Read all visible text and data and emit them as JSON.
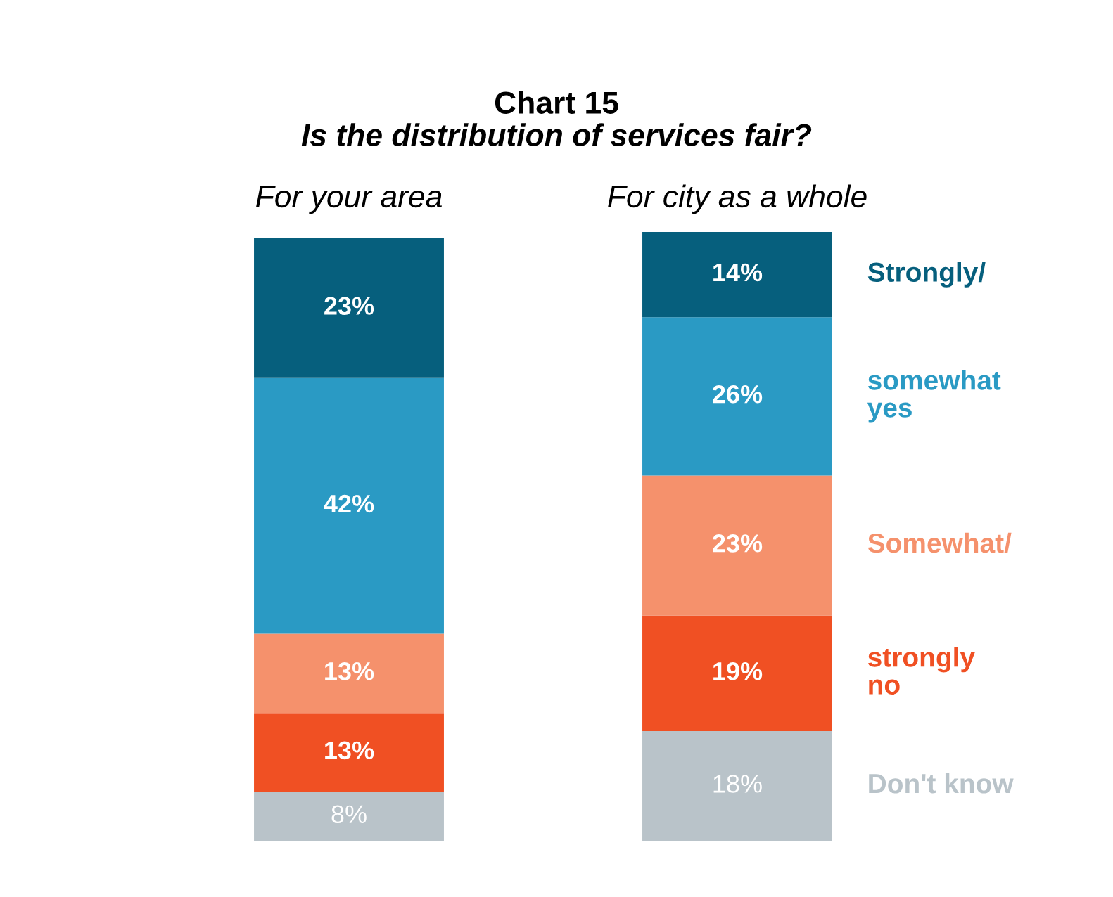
{
  "chart_data": {
    "type": "bar",
    "stacked": true,
    "title": "Chart 15",
    "subtitle": "Is the distribution of services fair?",
    "categories": [
      "For your area",
      "For city as a whole"
    ],
    "series": [
      {
        "name": "Don't know",
        "color": "#b9c3c9",
        "values": [
          8,
          18
        ],
        "value_labels": [
          "8%",
          "18%"
        ]
      },
      {
        "name": "strongly\nno",
        "color": "#f05023",
        "values": [
          13,
          19
        ],
        "value_labels": [
          "13%",
          "19%"
        ]
      },
      {
        "name": "Somewhat/",
        "color": "#f5916c",
        "values": [
          13,
          23
        ],
        "value_labels": [
          "13%",
          "23%"
        ]
      },
      {
        "name": "somewhat\nyes",
        "color": "#2a9ac4",
        "values": [
          42,
          26
        ],
        "value_labels": [
          "42%",
          "26%"
        ]
      },
      {
        "name": "Strongly/",
        "color": "#065f7d",
        "values": [
          23,
          14
        ],
        "value_labels": [
          "23%",
          "14%"
        ]
      }
    ],
    "legend": false
  }
}
